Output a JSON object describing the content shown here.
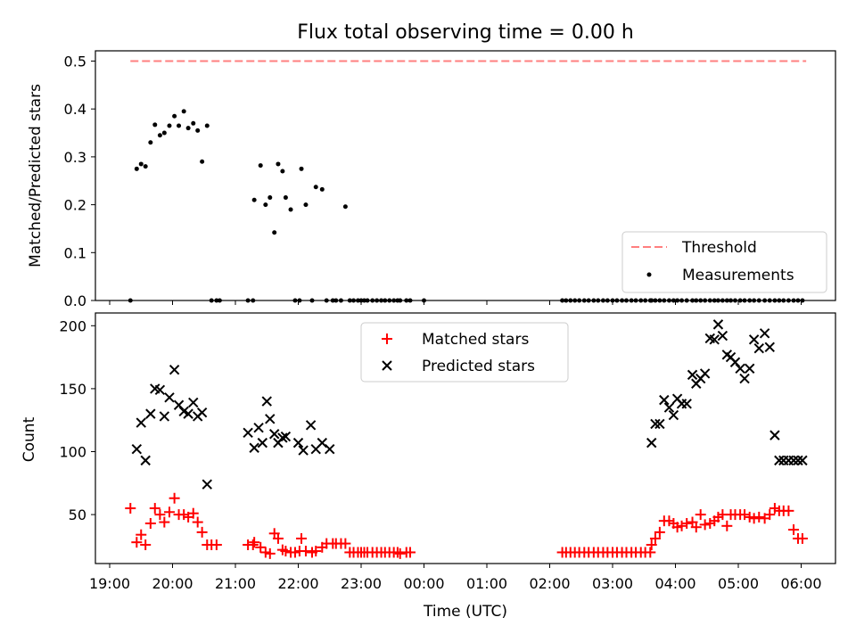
{
  "title": "Flux total observing time = 0.00 h",
  "x_axis": {
    "label": "Time (UTC)",
    "ticks": [
      "19:00",
      "20:00",
      "21:00",
      "22:00",
      "23:00",
      "00:00",
      "01:00",
      "02:00",
      "03:00",
      "04:00",
      "05:00",
      "06:00"
    ]
  },
  "colors": {
    "threshold": "#ff7f7f",
    "measurements": "#000000",
    "matched": "#ff0000",
    "predicted": "#000000"
  },
  "chart_data": [
    {
      "type": "scatter",
      "panel": "top",
      "ylabel": "Matched/Predicted stars",
      "ylim": [
        0,
        0.52
      ],
      "yticks": [
        "0.0",
        "0.1",
        "0.2",
        "0.3",
        "0.4",
        "0.5"
      ],
      "grid": false,
      "legend_position": "lower-right",
      "x_unit": "hours since 19:00 UTC",
      "series": [
        {
          "name": "Threshold",
          "kind": "line-dashed",
          "x": [
            0.33,
            6.73,
            11.08
          ],
          "y": [
            0.5,
            0.5,
            0.5
          ]
        },
        {
          "name": "Measurements",
          "kind": "points",
          "x": [
            0.33,
            0.43,
            0.5,
            0.57,
            0.65,
            0.72,
            0.8,
            0.87,
            0.95,
            1.03,
            1.1,
            1.18,
            1.25,
            1.33,
            1.4,
            1.47,
            1.55,
            1.62,
            1.7,
            1.75,
            2.2,
            2.28,
            2.3,
            2.4,
            2.48,
            2.55,
            2.62,
            2.68,
            2.75,
            2.8,
            2.88,
            2.95,
            3.02,
            3.05,
            3.12,
            3.22,
            3.28,
            3.38,
            3.45,
            3.55,
            3.6,
            3.68,
            3.75,
            3.82,
            3.88,
            3.95,
            4.0,
            4.05,
            4.1,
            4.18,
            4.25,
            4.32,
            4.38,
            4.45,
            4.52,
            4.58,
            4.62,
            4.72,
            4.78,
            5.0,
            7.2,
            7.26,
            7.33,
            7.4,
            7.47,
            7.55,
            7.62,
            7.7,
            7.77,
            7.85,
            7.92,
            8.0,
            8.07,
            8.15,
            8.22,
            8.3,
            8.37,
            8.45,
            8.52,
            8.6,
            8.62,
            8.68,
            8.75,
            8.82,
            8.9,
            8.97,
            9.03,
            9.1,
            9.18,
            9.27,
            9.33,
            9.4,
            9.47,
            9.55,
            9.62,
            9.68,
            9.75,
            9.82,
            9.88,
            9.95,
            10.03,
            10.1,
            10.18,
            10.25,
            10.33,
            10.42,
            10.5,
            10.58,
            10.65,
            10.72,
            10.8,
            10.88,
            10.95,
            11.02
          ],
          "y": [
            0.0,
            0.275,
            0.285,
            0.28,
            0.33,
            0.367,
            0.345,
            0.35,
            0.365,
            0.385,
            0.365,
            0.395,
            0.36,
            0.37,
            0.355,
            0.29,
            0.365,
            0.0,
            0.0,
            0.0,
            0.0,
            0.0,
            0.21,
            0.282,
            0.2,
            0.215,
            0.142,
            0.285,
            0.27,
            0.215,
            0.19,
            0.0,
            0.0,
            0.275,
            0.2,
            0.0,
            0.237,
            0.232,
            0.0,
            0.0,
            0.0,
            0.0,
            0.196,
            0.0,
            0.0,
            0.0,
            0.0,
            0.0,
            0.0,
            0.0,
            0.0,
            0.0,
            0.0,
            0.0,
            0.0,
            0.0,
            0.0,
            0.0,
            0.0,
            0.0,
            0.0,
            0.0,
            0.0,
            0.0,
            0.0,
            0.0,
            0.0,
            0.0,
            0.0,
            0.0,
            0.0,
            0.0,
            0.0,
            0.0,
            0.0,
            0.0,
            0.0,
            0.0,
            0.0,
            0.0,
            0.0,
            0.0,
            0.0,
            0.0,
            0.0,
            0.0,
            0.0,
            0.0,
            0.0,
            0.0,
            0.0,
            0.0,
            0.0,
            0.0,
            0.0,
            0.0,
            0.0,
            0.0,
            0.0,
            0.0,
            0.0,
            0.0,
            0.0,
            0.0,
            0.0,
            0.0,
            0.0,
            0.0,
            0.0,
            0.0,
            0.0,
            0.0,
            0.0,
            0.0
          ]
        }
      ]
    },
    {
      "type": "scatter",
      "panel": "bottom",
      "ylabel": "Count",
      "ylim": [
        12,
        211
      ],
      "yticks": [
        "50",
        "100",
        "150",
        "200"
      ],
      "grid": false,
      "legend_position": "upper-center",
      "x_unit": "hours since 19:00 UTC",
      "series": [
        {
          "name": "Matched stars",
          "marker": "plus",
          "x": [
            0.33,
            0.43,
            0.5,
            0.57,
            0.65,
            0.72,
            0.8,
            0.87,
            0.95,
            1.03,
            1.1,
            1.18,
            1.25,
            1.33,
            1.4,
            1.47,
            1.55,
            1.62,
            1.7,
            2.2,
            2.28,
            2.3,
            2.4,
            2.48,
            2.55,
            2.62,
            2.68,
            2.75,
            2.8,
            2.88,
            2.95,
            3.02,
            3.05,
            3.12,
            3.22,
            3.28,
            3.38,
            3.45,
            3.55,
            3.6,
            3.68,
            3.75,
            3.82,
            3.88,
            3.95,
            4.0,
            4.05,
            4.1,
            4.18,
            4.25,
            4.32,
            4.38,
            4.45,
            4.52,
            4.58,
            4.62,
            4.72,
            4.78,
            7.2,
            7.26,
            7.33,
            7.4,
            7.47,
            7.55,
            7.62,
            7.7,
            7.77,
            7.85,
            7.92,
            8.0,
            8.07,
            8.15,
            8.22,
            8.3,
            8.37,
            8.45,
            8.52,
            8.6,
            8.62,
            8.68,
            8.75,
            8.82,
            8.9,
            8.97,
            9.03,
            9.1,
            9.18,
            9.27,
            9.33,
            9.4,
            9.47,
            9.55,
            9.62,
            9.68,
            9.75,
            9.82,
            9.88,
            9.95,
            10.03,
            10.1,
            10.18,
            10.25,
            10.33,
            10.42,
            10.5,
            10.58,
            10.65,
            10.72,
            10.8,
            10.88,
            10.95,
            11.02
          ],
          "y": [
            55,
            28,
            34,
            26,
            43,
            55,
            50,
            44,
            52,
            63,
            50,
            50,
            48,
            51,
            44,
            36,
            26,
            26,
            26,
            26,
            26,
            28,
            24,
            20,
            19,
            35,
            31,
            22,
            21,
            20,
            20,
            21,
            31,
            21,
            20,
            21,
            24,
            27,
            27,
            27,
            27,
            27,
            20,
            20,
            20,
            20,
            20,
            20,
            20,
            20,
            20,
            20,
            20,
            20,
            20,
            19,
            20,
            20,
            20,
            20,
            20,
            20,
            20,
            20,
            20,
            20,
            20,
            20,
            20,
            20,
            20,
            20,
            20,
            20,
            20,
            20,
            20,
            20,
            26,
            31,
            36,
            45,
            45,
            43,
            40,
            41,
            43,
            44,
            40,
            50,
            42,
            43,
            45,
            48,
            50,
            41,
            50,
            50,
            50,
            50,
            48,
            47,
            48,
            47,
            50,
            55,
            53,
            53,
            53,
            38,
            31,
            31
          ]
        },
        {
          "name": "Predicted stars",
          "marker": "x",
          "x": [
            0.43,
            0.5,
            0.57,
            0.65,
            0.72,
            0.8,
            0.87,
            0.95,
            1.03,
            1.1,
            1.18,
            1.25,
            1.33,
            1.4,
            1.47,
            1.55,
            2.2,
            2.3,
            2.37,
            2.43,
            2.5,
            2.55,
            2.62,
            2.68,
            2.75,
            2.8,
            3.0,
            3.08,
            3.2,
            3.28,
            3.38,
            3.5,
            8.62,
            8.68,
            8.75,
            8.82,
            8.9,
            8.97,
            9.03,
            9.1,
            9.18,
            9.27,
            9.33,
            9.4,
            9.47,
            9.55,
            9.62,
            9.68,
            9.75,
            9.82,
            9.88,
            9.95,
            10.03,
            10.1,
            10.18,
            10.25,
            10.33,
            10.42,
            10.5,
            10.58,
            10.65,
            10.72,
            10.8,
            10.88,
            10.95,
            11.02
          ],
          "y": [
            102,
            123,
            93,
            130,
            150,
            149,
            128,
            143,
            165,
            137,
            132,
            130,
            139,
            128,
            131,
            74,
            115,
            103,
            119,
            107,
            140,
            126,
            114,
            107,
            111,
            112,
            107,
            101,
            121,
            102,
            107,
            102,
            107,
            122,
            122,
            141,
            135,
            129,
            142,
            138,
            138,
            161,
            154,
            158,
            162,
            190,
            189,
            201,
            192,
            177,
            175,
            171,
            166,
            158,
            166,
            189,
            182,
            194,
            183,
            113,
            93,
            93,
            93,
            93,
            93,
            93
          ]
        }
      ]
    }
  ]
}
